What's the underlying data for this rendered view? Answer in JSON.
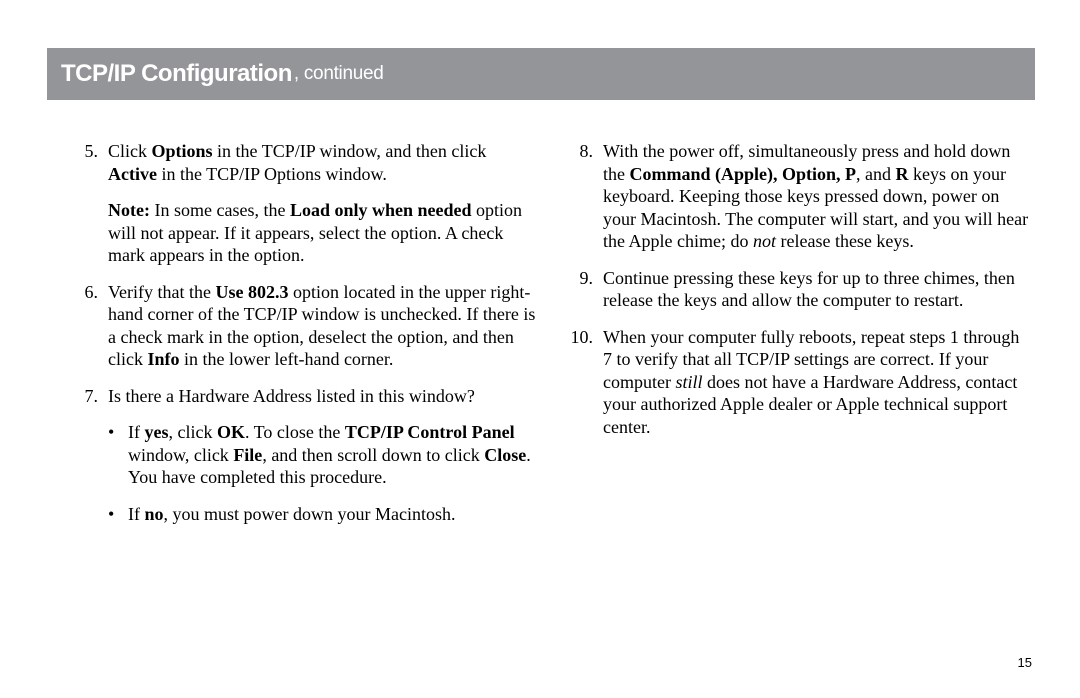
{
  "header": {
    "title": "TCP/IP Configuration",
    "continued": ", continued"
  },
  "left_column": {
    "step5": {
      "num": "5.",
      "body_html": "Click <b>Options</b> in the TCP/IP window, and then click <b>Active</b> in the TCP/IP Options window."
    },
    "note": {
      "body_html": "<b>Note:</b> In some cases, the <b>Load only when needed</b> option will not appear. If it appears, select the option. A check mark appears in the option."
    },
    "step6": {
      "num": "6.",
      "body_html": "Verify that the <b>Use 802.3</b> option located in the upper right-hand corner of the TCP/IP window is unchecked. If there is a check mark in the option, deselect the option, and then click <b>Info</b> in the lower left-hand corner."
    },
    "step7": {
      "num": "7.",
      "body_html": "Is there a Hardware Address listed in this window?"
    },
    "bullet1": {
      "dot": "•",
      "body_html": "If <b>yes</b>, click <b>OK</b>. To close the <b>TCP/IP Control Panel</b> window, click <b>File</b>, and then scroll down to click <b>Close</b>. You have completed this procedure."
    },
    "bullet2": {
      "dot": "•",
      "body_html": "If <b>no</b>, you must power down your Macintosh."
    }
  },
  "right_column": {
    "step8": {
      "num": "8.",
      "body_html": "With the power off, simultaneously press and hold down the <b>Command (Apple), Option, P</b>, and <b>R</b> keys on your keyboard. Keeping those keys pressed down, power on your Macintosh. The computer will start, and you will hear the Apple chime; do <i>not</i> release these keys."
    },
    "step9": {
      "num": "9.",
      "body_html": "Continue pressing these keys for up to three chimes, then release the keys and allow the computer to restart."
    },
    "step10": {
      "num": "10.",
      "body_html": "When your computer fully reboots, repeat steps 1 through 7 to verify that all TCP/IP settings are correct. If your computer <i>still</i> does not have a Hardware Address, contact your authorized Apple dealer or Apple technical support center."
    }
  },
  "page_number": "15"
}
